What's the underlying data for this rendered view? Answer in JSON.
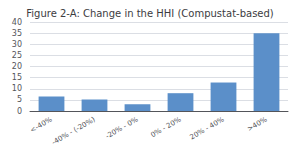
{
  "chart_data": {
    "type": "bar",
    "title": "Figure 2-A: Change in the HHI (Compustat-based)",
    "categories": [
      "<-40%",
      "-40% - (-20%)",
      "-20% - 0%",
      "0% - 20%",
      "20% - 40%",
      ">40%"
    ],
    "values": [
      6.5,
      5.2,
      3.0,
      8.0,
      12.8,
      35.0
    ],
    "color": "#5b8fc9",
    "ylim": [
      0,
      40
    ],
    "yticks": [
      0,
      5,
      10,
      15,
      20,
      25,
      30,
      35,
      40
    ],
    "grid": true
  }
}
